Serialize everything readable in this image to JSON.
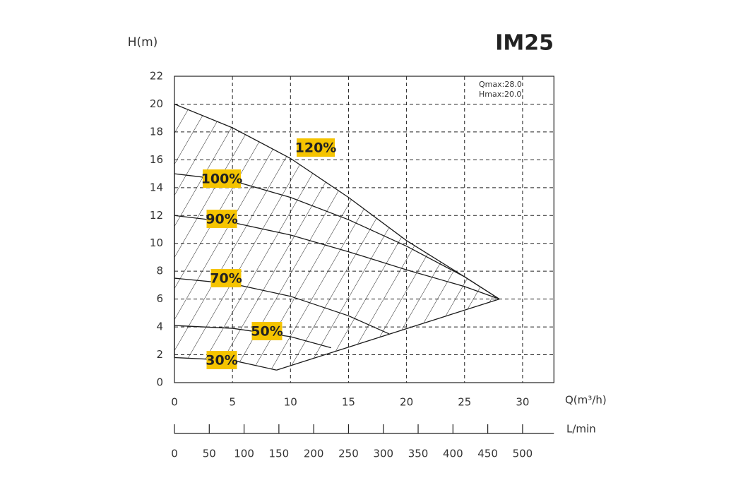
{
  "chart_data": {
    "type": "line",
    "title": "IM25",
    "y_label": "H(m)",
    "x_label": "Q(m³/h)",
    "x2_label": "L/min",
    "annotations": [
      "Qmax:28.0",
      "Hmax:20.0"
    ],
    "xlim": [
      0,
      32.7
    ],
    "xticks": [
      0,
      5,
      10,
      15,
      20,
      25,
      30
    ],
    "ylim": [
      0,
      22
    ],
    "yticks": [
      0,
      2,
      4,
      6,
      8,
      10,
      12,
      14,
      16,
      18,
      20,
      22
    ],
    "x2lim": [
      0,
      545
    ],
    "x2ticks": [
      0,
      50,
      100,
      150,
      200,
      250,
      300,
      350,
      400,
      450,
      500
    ],
    "grid": true,
    "color": "#1a1a1a",
    "label_color": "#f5c400",
    "series": [
      {
        "name": "120%",
        "x": [
          0,
          5,
          10,
          15,
          20,
          25,
          28
        ],
        "values": [
          20,
          18.3,
          16.1,
          13.3,
          10.2,
          7.6,
          6
        ]
      },
      {
        "name": "100%",
        "x": [
          0,
          5,
          10,
          15,
          20,
          25,
          28
        ],
        "values": [
          15,
          14.5,
          13.3,
          11.7,
          9.8,
          7.6,
          6
        ]
      },
      {
        "name": "90%",
        "x": [
          0,
          5,
          10,
          15,
          20,
          25,
          28
        ],
        "values": [
          12,
          11.5,
          10.6,
          9.4,
          8.1,
          6.9,
          6
        ]
      },
      {
        "name": "70%",
        "x": [
          0,
          5,
          10,
          15,
          18.5
        ],
        "values": [
          7.5,
          7.1,
          6.2,
          4.8,
          3.5
        ]
      },
      {
        "name": "50%",
        "x": [
          0,
          5,
          10,
          13.5
        ],
        "values": [
          4.1,
          3.9,
          3.3,
          2.5
        ]
      },
      {
        "name": "30%",
        "x": [
          0,
          5,
          8.8
        ],
        "values": [
          1.8,
          1.6,
          0.9
        ]
      }
    ],
    "boundary": {
      "x": [
        8.8,
        28
      ],
      "values": [
        0.9,
        6
      ]
    }
  }
}
